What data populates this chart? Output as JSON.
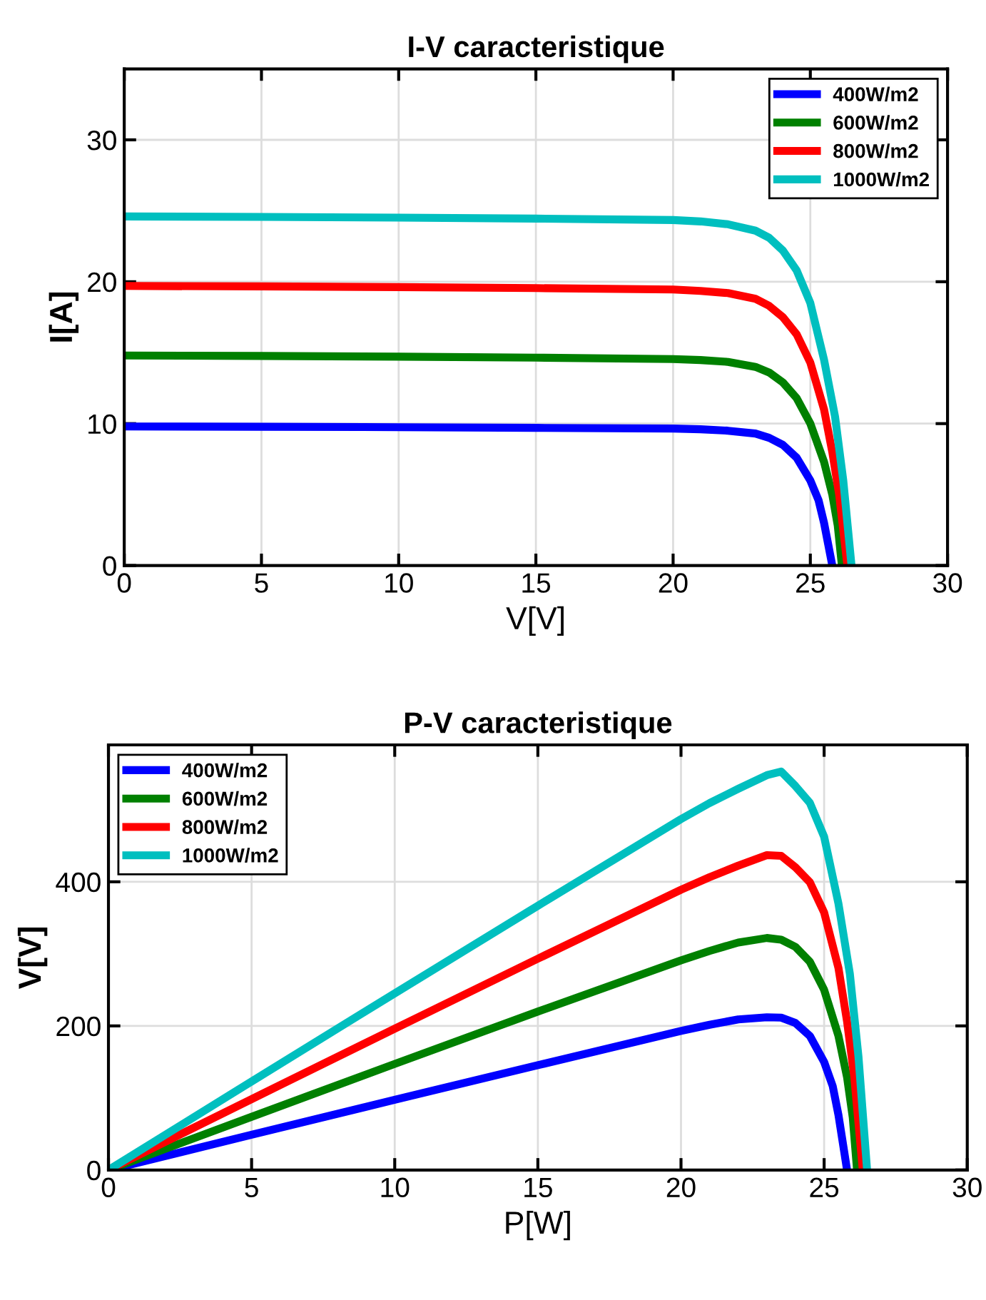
{
  "chart_data": [
    {
      "type": "line",
      "title": "I-V caracteristique",
      "xlabel": "V[V]",
      "ylabel": "I[A]",
      "xlim": [
        0,
        30
      ],
      "xticks": [
        0,
        5,
        10,
        15,
        20,
        25,
        30
      ],
      "ylim": [
        0,
        35
      ],
      "yticks": [
        0,
        10,
        20,
        30
      ],
      "grid": true,
      "legend": "top right",
      "line_style": "solid",
      "series": [
        {
          "name": "400W/m2",
          "color": "#0000ff",
          "x": [
            0,
            5,
            10,
            15,
            20,
            21,
            22,
            23,
            23.5,
            24,
            24.5,
            25,
            25.3,
            25.5,
            25.7,
            25.8
          ],
          "values": [
            9.8,
            9.78,
            9.75,
            9.7,
            9.65,
            9.6,
            9.5,
            9.3,
            9.0,
            8.5,
            7.6,
            6.0,
            4.6,
            3.0,
            1.0,
            0
          ]
        },
        {
          "name": "600W/m2",
          "color": "#008000",
          "x": [
            0,
            5,
            10,
            15,
            20,
            21,
            22,
            23,
            23.5,
            24,
            24.5,
            25,
            25.5,
            25.8,
            26.0,
            26.15
          ],
          "values": [
            14.8,
            14.77,
            14.72,
            14.65,
            14.55,
            14.48,
            14.35,
            14.0,
            13.6,
            12.9,
            11.8,
            10.0,
            7.3,
            5.0,
            2.8,
            0
          ]
        },
        {
          "name": "800W/m2",
          "color": "#ff0000",
          "x": [
            0,
            5,
            10,
            15,
            20,
            21,
            22,
            23,
            23.5,
            24,
            24.5,
            25,
            25.5,
            25.8,
            26.05,
            26.35
          ],
          "values": [
            19.7,
            19.67,
            19.62,
            19.55,
            19.45,
            19.35,
            19.2,
            18.8,
            18.3,
            17.5,
            16.3,
            14.3,
            11.0,
            8.0,
            5.0,
            0
          ]
        },
        {
          "name": "1000W/m2",
          "color": "#00bfbf",
          "x": [
            0,
            5,
            10,
            15,
            20,
            21,
            22,
            23,
            23.5,
            24,
            24.5,
            25,
            25.5,
            25.9,
            26.2,
            26.5
          ],
          "values": [
            24.6,
            24.57,
            24.52,
            24.45,
            24.35,
            24.25,
            24.05,
            23.6,
            23.1,
            22.2,
            20.8,
            18.5,
            14.5,
            10.5,
            6,
            0
          ]
        }
      ]
    },
    {
      "type": "line",
      "title": "P-V caracteristique",
      "xlabel": "P[W]",
      "ylabel": "V[V]",
      "xlim": [
        0,
        30
      ],
      "xticks": [
        0,
        5,
        10,
        15,
        20,
        25,
        30
      ],
      "ylim": [
        0,
        590
      ],
      "yticks": [
        0,
        200,
        400
      ],
      "grid": true,
      "legend": "top left",
      "line_style": "solid",
      "series": [
        {
          "name": "400W/m2",
          "color": "#0000ff",
          "x": [
            0,
            5,
            10,
            15,
            20,
            21,
            22,
            23,
            23.5,
            24,
            24.5,
            25,
            25.3,
            25.5,
            25.7,
            25.8
          ],
          "values": [
            0,
            48.9,
            97.5,
            145.5,
            193,
            201.6,
            209,
            212,
            211.5,
            204,
            186.2,
            150,
            116.4,
            76.5,
            25.7,
            0
          ]
        },
        {
          "name": "600W/m2",
          "color": "#008000",
          "x": [
            0,
            5,
            10,
            15,
            20,
            21,
            22,
            23,
            23.5,
            24,
            24.5,
            25,
            25.5,
            25.8,
            26.0,
            26.15
          ],
          "values": [
            0,
            73.9,
            147.2,
            219.8,
            291,
            304.1,
            315.7,
            322,
            319.6,
            309.6,
            289.1,
            250,
            186.2,
            129,
            72.8,
            0
          ]
        },
        {
          "name": "800W/m2",
          "color": "#ff0000",
          "x": [
            0,
            5,
            10,
            15,
            20,
            21,
            22,
            23,
            23.5,
            24,
            24.5,
            25,
            25.5,
            25.8,
            26.05,
            26.35
          ],
          "values": [
            0,
            98.4,
            196.2,
            293.3,
            389,
            406.4,
            422.4,
            437,
            436,
            420,
            399.4,
            357.5,
            280.5,
            206.4,
            130.3,
            0
          ]
        },
        {
          "name": "1000W/m2",
          "color": "#00bfbf",
          "x": [
            0,
            5,
            10,
            15,
            20,
            21,
            22,
            23,
            23.5,
            24,
            24.5,
            25,
            25.5,
            25.9,
            26.2,
            26.5
          ],
          "values": [
            0,
            122.9,
            245.2,
            366.8,
            487,
            509.3,
            529.1,
            548,
            553,
            532.8,
            509.6,
            462.5,
            369.8,
            271.9,
            157.2,
            0
          ]
        }
      ]
    }
  ]
}
